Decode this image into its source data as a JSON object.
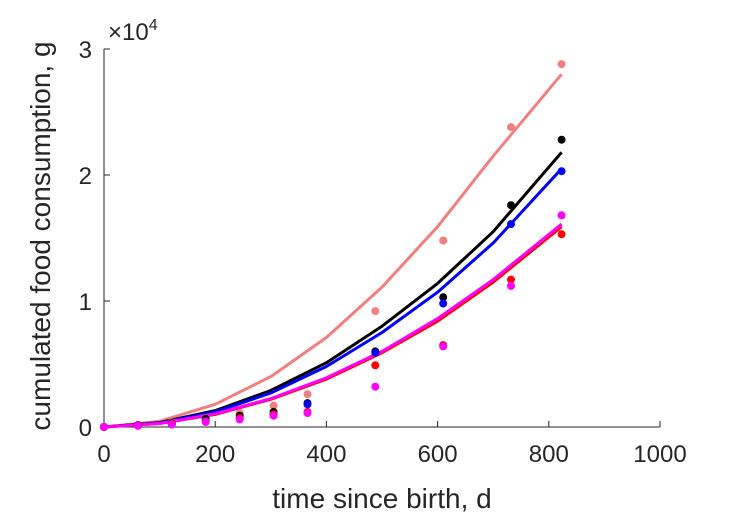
{
  "chart_data": {
    "type": "scatter",
    "xlabel": "time since birth, d",
    "ylabel": "cumulated food consumption, g",
    "xlim": [
      0,
      1000
    ],
    "ylim": [
      0,
      30000
    ],
    "xticks": [
      "0",
      "200",
      "400",
      "600",
      "800",
      "1000"
    ],
    "yticks": [
      "0",
      "1",
      "2",
      "3"
    ],
    "y_exponent_base": "×10",
    "y_exponent_power": "4",
    "grid": false,
    "legend": "none",
    "series": [
      {
        "color": "#f08080",
        "x": [
          0,
          61,
          122,
          183,
          244,
          305,
          366,
          488,
          610,
          732,
          823
        ],
        "y": [
          0,
          150,
          350,
          700,
          1100,
          1700,
          2600,
          9200,
          14800,
          23800,
          28800
        ],
        "fit_x": [
          0,
          100,
          200,
          300,
          400,
          500,
          600,
          700,
          823
        ],
        "fit_y": [
          0,
          450,
          1800,
          4000,
          7100,
          11100,
          15900,
          21500,
          28000
        ]
      },
      {
        "color": "#000000",
        "x": [
          0,
          61,
          122,
          183,
          244,
          305,
          366,
          488,
          610,
          732,
          823
        ],
        "y": [
          0,
          150,
          300,
          650,
          900,
          1200,
          1900,
          6000,
          10300,
          17600,
          22800
        ],
        "fit_x": [
          0,
          100,
          200,
          300,
          400,
          500,
          600,
          700,
          823
        ],
        "fit_y": [
          0,
          350,
          1300,
          2900,
          5100,
          8000,
          11400,
          15500,
          21800
        ]
      },
      {
        "color": "#0000ff",
        "x": [
          0,
          61,
          122,
          183,
          244,
          305,
          366,
          488,
          610,
          732,
          823
        ],
        "y": [
          0,
          100,
          200,
          500,
          700,
          1000,
          1800,
          5900,
          9800,
          16100,
          20300
        ],
        "fit_x": [
          0,
          100,
          200,
          300,
          400,
          500,
          600,
          700,
          823
        ],
        "fit_y": [
          0,
          320,
          1200,
          2700,
          4800,
          7500,
          10700,
          14600,
          20500
        ]
      },
      {
        "color": "#ff0000",
        "x": [
          0,
          61,
          122,
          183,
          244,
          305,
          366,
          488,
          610,
          732,
          823
        ],
        "y": [
          0,
          120,
          250,
          450,
          700,
          1000,
          1200,
          4900,
          6500,
          11700,
          15300
        ],
        "fit_x": [
          0,
          100,
          200,
          300,
          400,
          500,
          600,
          700,
          823
        ],
        "fit_y": [
          0,
          280,
          1000,
          2200,
          3800,
          5900,
          8400,
          11500,
          15900
        ]
      },
      {
        "color": "#ff00ff",
        "x": [
          0,
          61,
          122,
          183,
          244,
          305,
          366,
          488,
          610,
          732,
          823
        ],
        "y": [
          0,
          100,
          200,
          400,
          600,
          900,
          1100,
          3200,
          6400,
          11200,
          16800
        ],
        "fit_x": [
          0,
          100,
          200,
          300,
          400,
          500,
          600,
          700,
          823
        ],
        "fit_y": [
          0,
          280,
          1050,
          2250,
          3900,
          6000,
          8600,
          11700,
          16100
        ]
      }
    ]
  }
}
